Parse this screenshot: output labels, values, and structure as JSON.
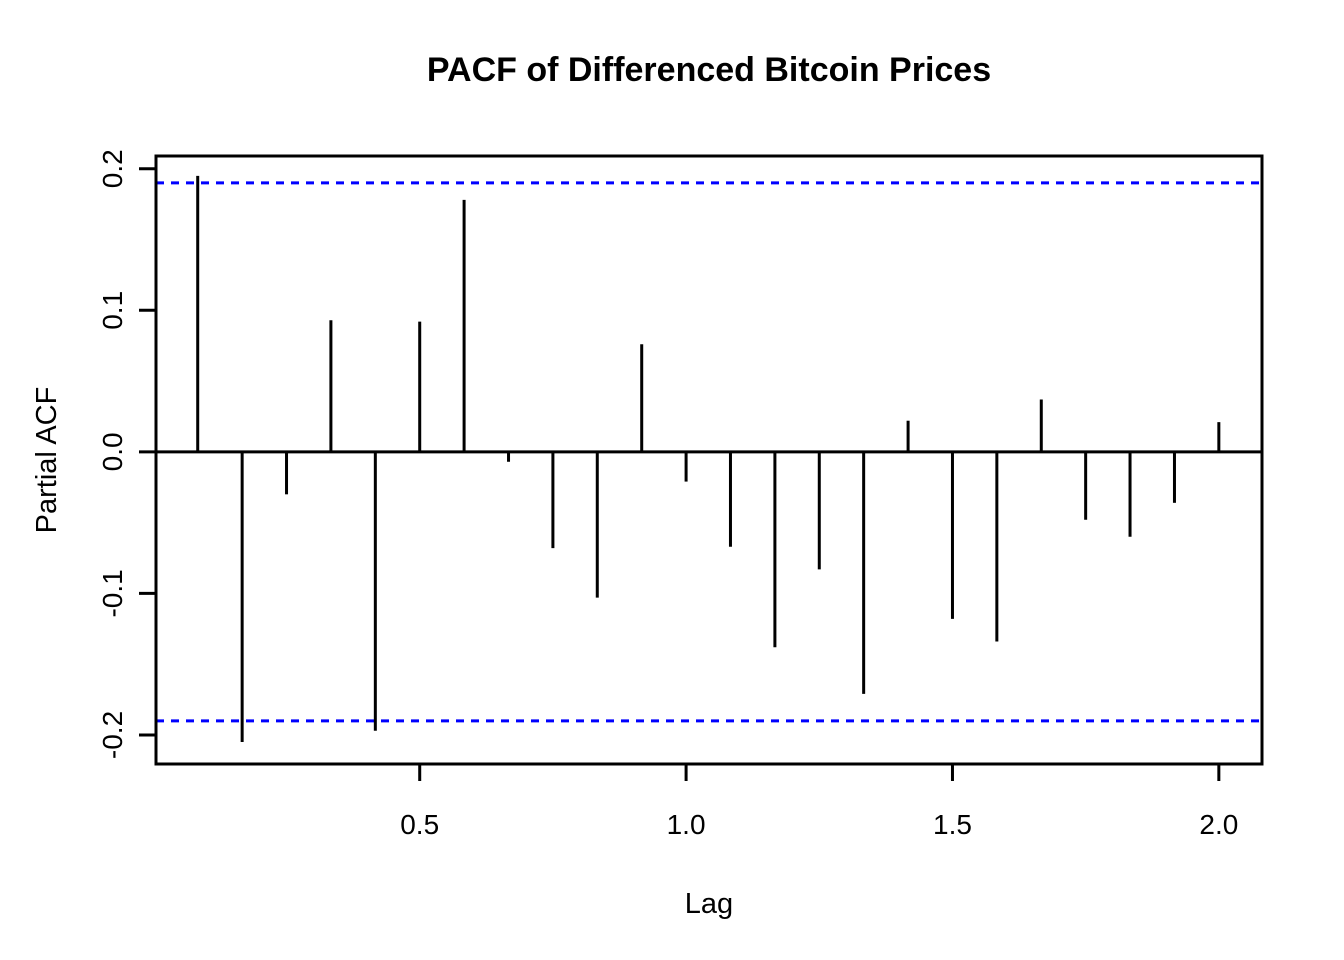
{
  "chart_data": {
    "type": "stem",
    "title": "PACF of Differenced Bitcoin Prices",
    "xlabel": "Lag",
    "ylabel": "Partial ACF",
    "x": [
      0.0833,
      0.1667,
      0.25,
      0.3333,
      0.4167,
      0.5,
      0.5833,
      0.6667,
      0.75,
      0.8333,
      0.9167,
      1.0,
      1.0833,
      1.1667,
      1.25,
      1.3333,
      1.4167,
      1.5,
      1.5833,
      1.6667,
      1.75,
      1.8333,
      1.9167,
      2.0
    ],
    "values": [
      0.195,
      -0.205,
      -0.03,
      0.093,
      -0.197,
      0.092,
      0.178,
      -0.007,
      -0.068,
      -0.103,
      0.076,
      -0.021,
      -0.067,
      -0.138,
      -0.083,
      -0.171,
      0.022,
      -0.118,
      -0.134,
      0.037,
      -0.048,
      -0.06,
      -0.036,
      0.021
    ],
    "confidence_upper": 0.19,
    "confidence_lower": -0.19,
    "confidence_line_style": "dashed",
    "confidence_line_color": "#0000FF",
    "spike_color": "#000000",
    "zero_line_value": 0.0,
    "xlim": [
      0.005,
      2.081
    ],
    "ylim": [
      -0.2205,
      0.209
    ],
    "x_ticks": [
      {
        "value": 0.5,
        "label": "0.5"
      },
      {
        "value": 1.0,
        "label": "1.0"
      },
      {
        "value": 1.5,
        "label": "1.5"
      },
      {
        "value": 2.0,
        "label": "2.0"
      }
    ],
    "y_ticks": [
      {
        "value": 0.2,
        "label": "0.2"
      },
      {
        "value": 0.1,
        "label": "0.1"
      },
      {
        "value": 0.0,
        "label": "0.0"
      },
      {
        "value": -0.1,
        "label": "-0.1"
      },
      {
        "value": -0.2,
        "label": "-0.2"
      }
    ],
    "grid": false,
    "legend": "none",
    "background_color": "#FFFFFF"
  }
}
